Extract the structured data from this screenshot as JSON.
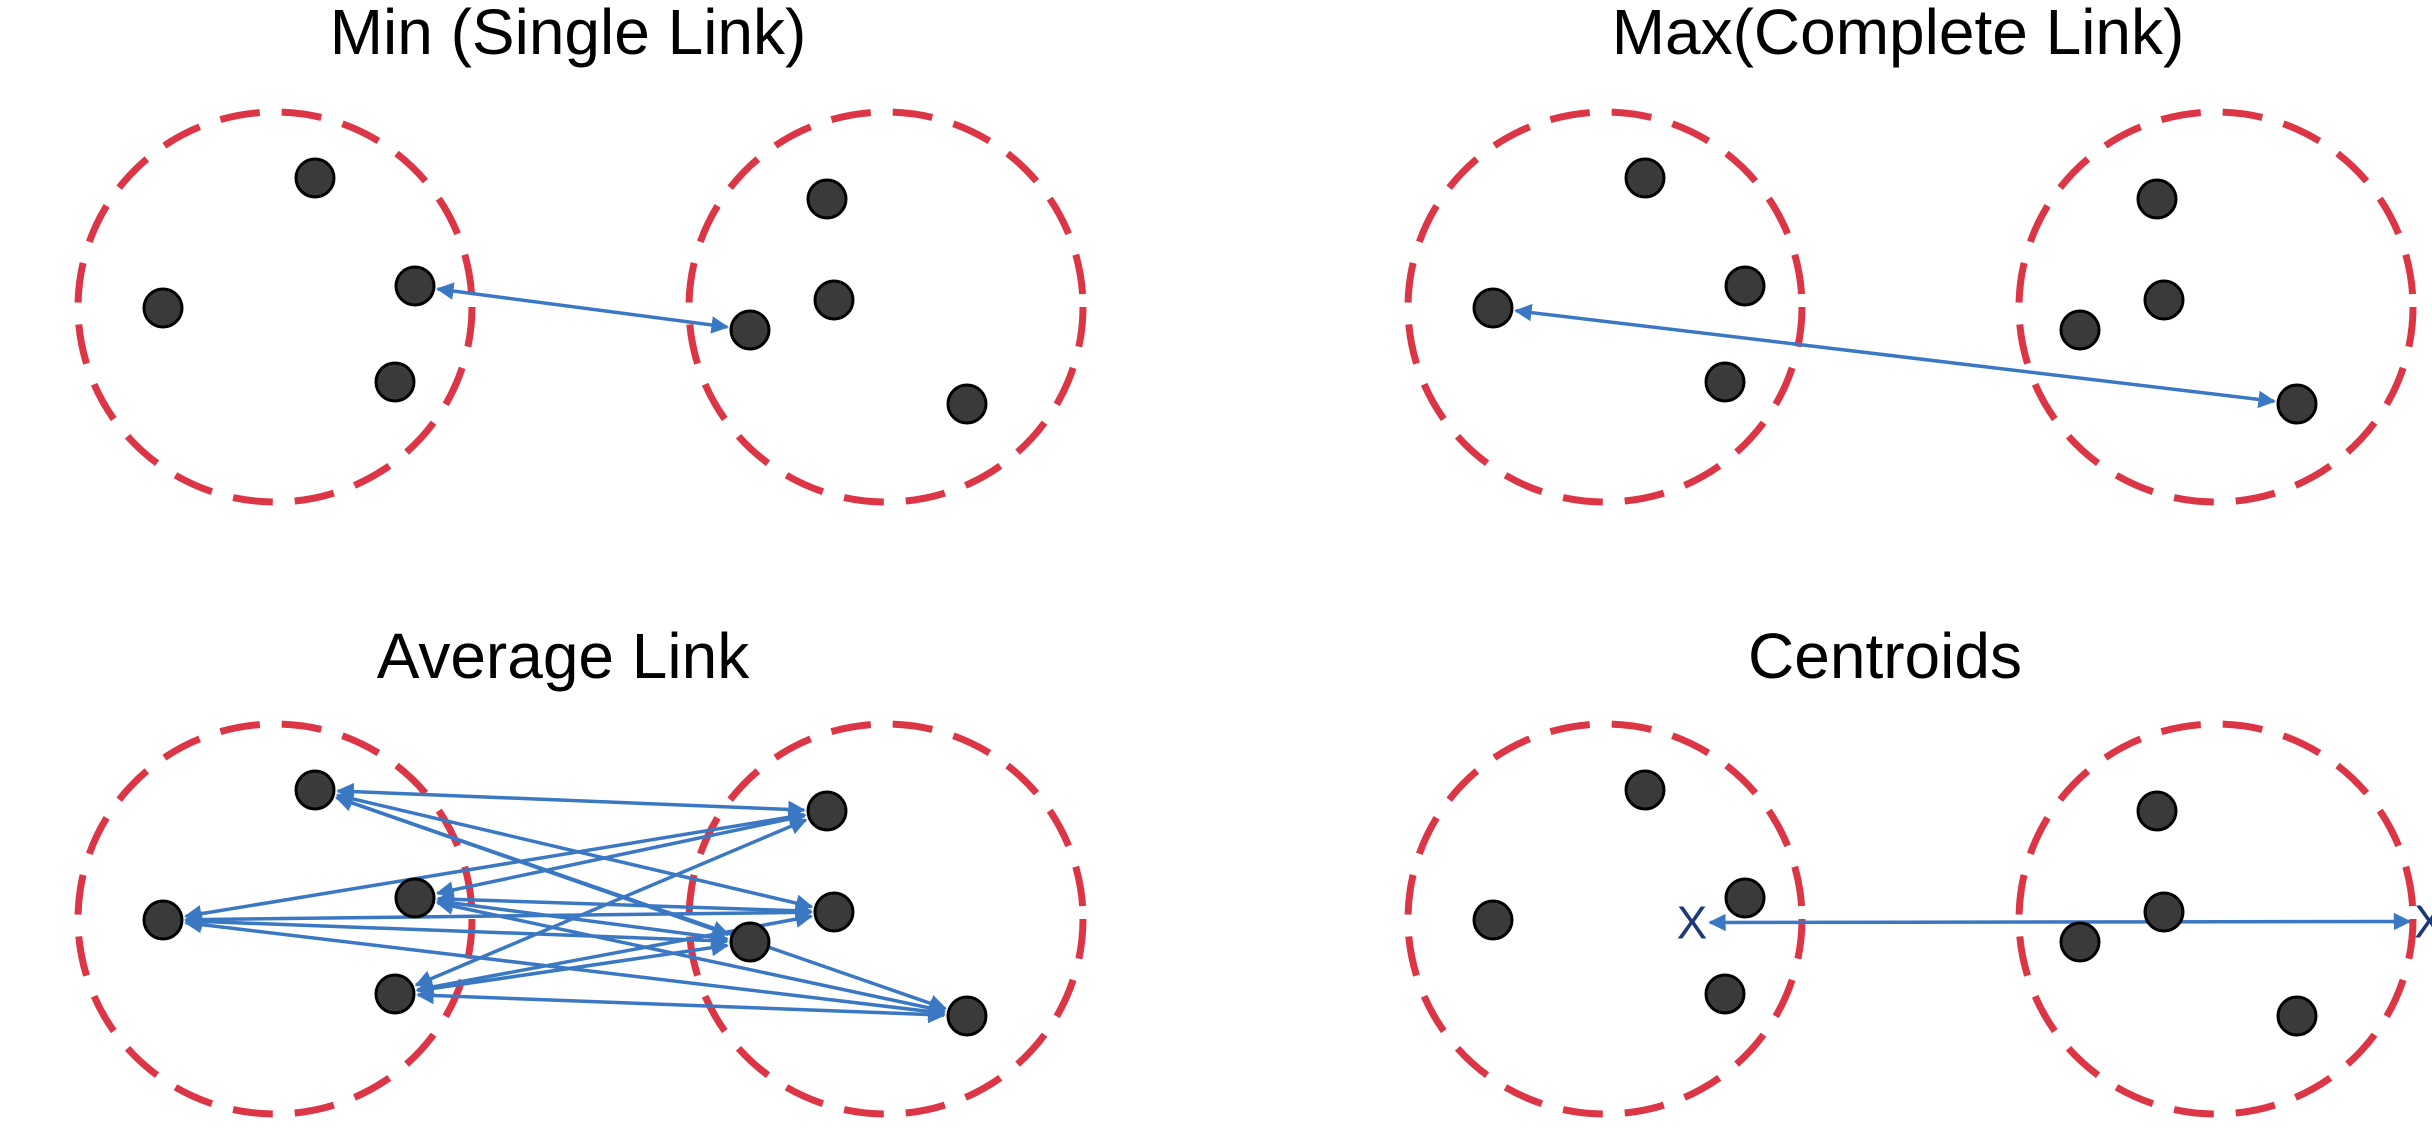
{
  "colors": {
    "cluster_ring": "#dc3545",
    "point_fill": "#3a3a3a",
    "link": "#3a78c3",
    "centroid_mark": "#1f3a7a"
  },
  "panels": [
    {
      "id": "min",
      "title": "Min (Single Link)",
      "link_method": "single"
    },
    {
      "id": "max",
      "title": "Max(Complete Link)",
      "link_method": "complete"
    },
    {
      "id": "avg",
      "title": "Average Link",
      "link_method": "average"
    },
    {
      "id": "centroids",
      "title": "Centroids",
      "link_method": "centroid",
      "centroid_mark": "X"
    }
  ]
}
